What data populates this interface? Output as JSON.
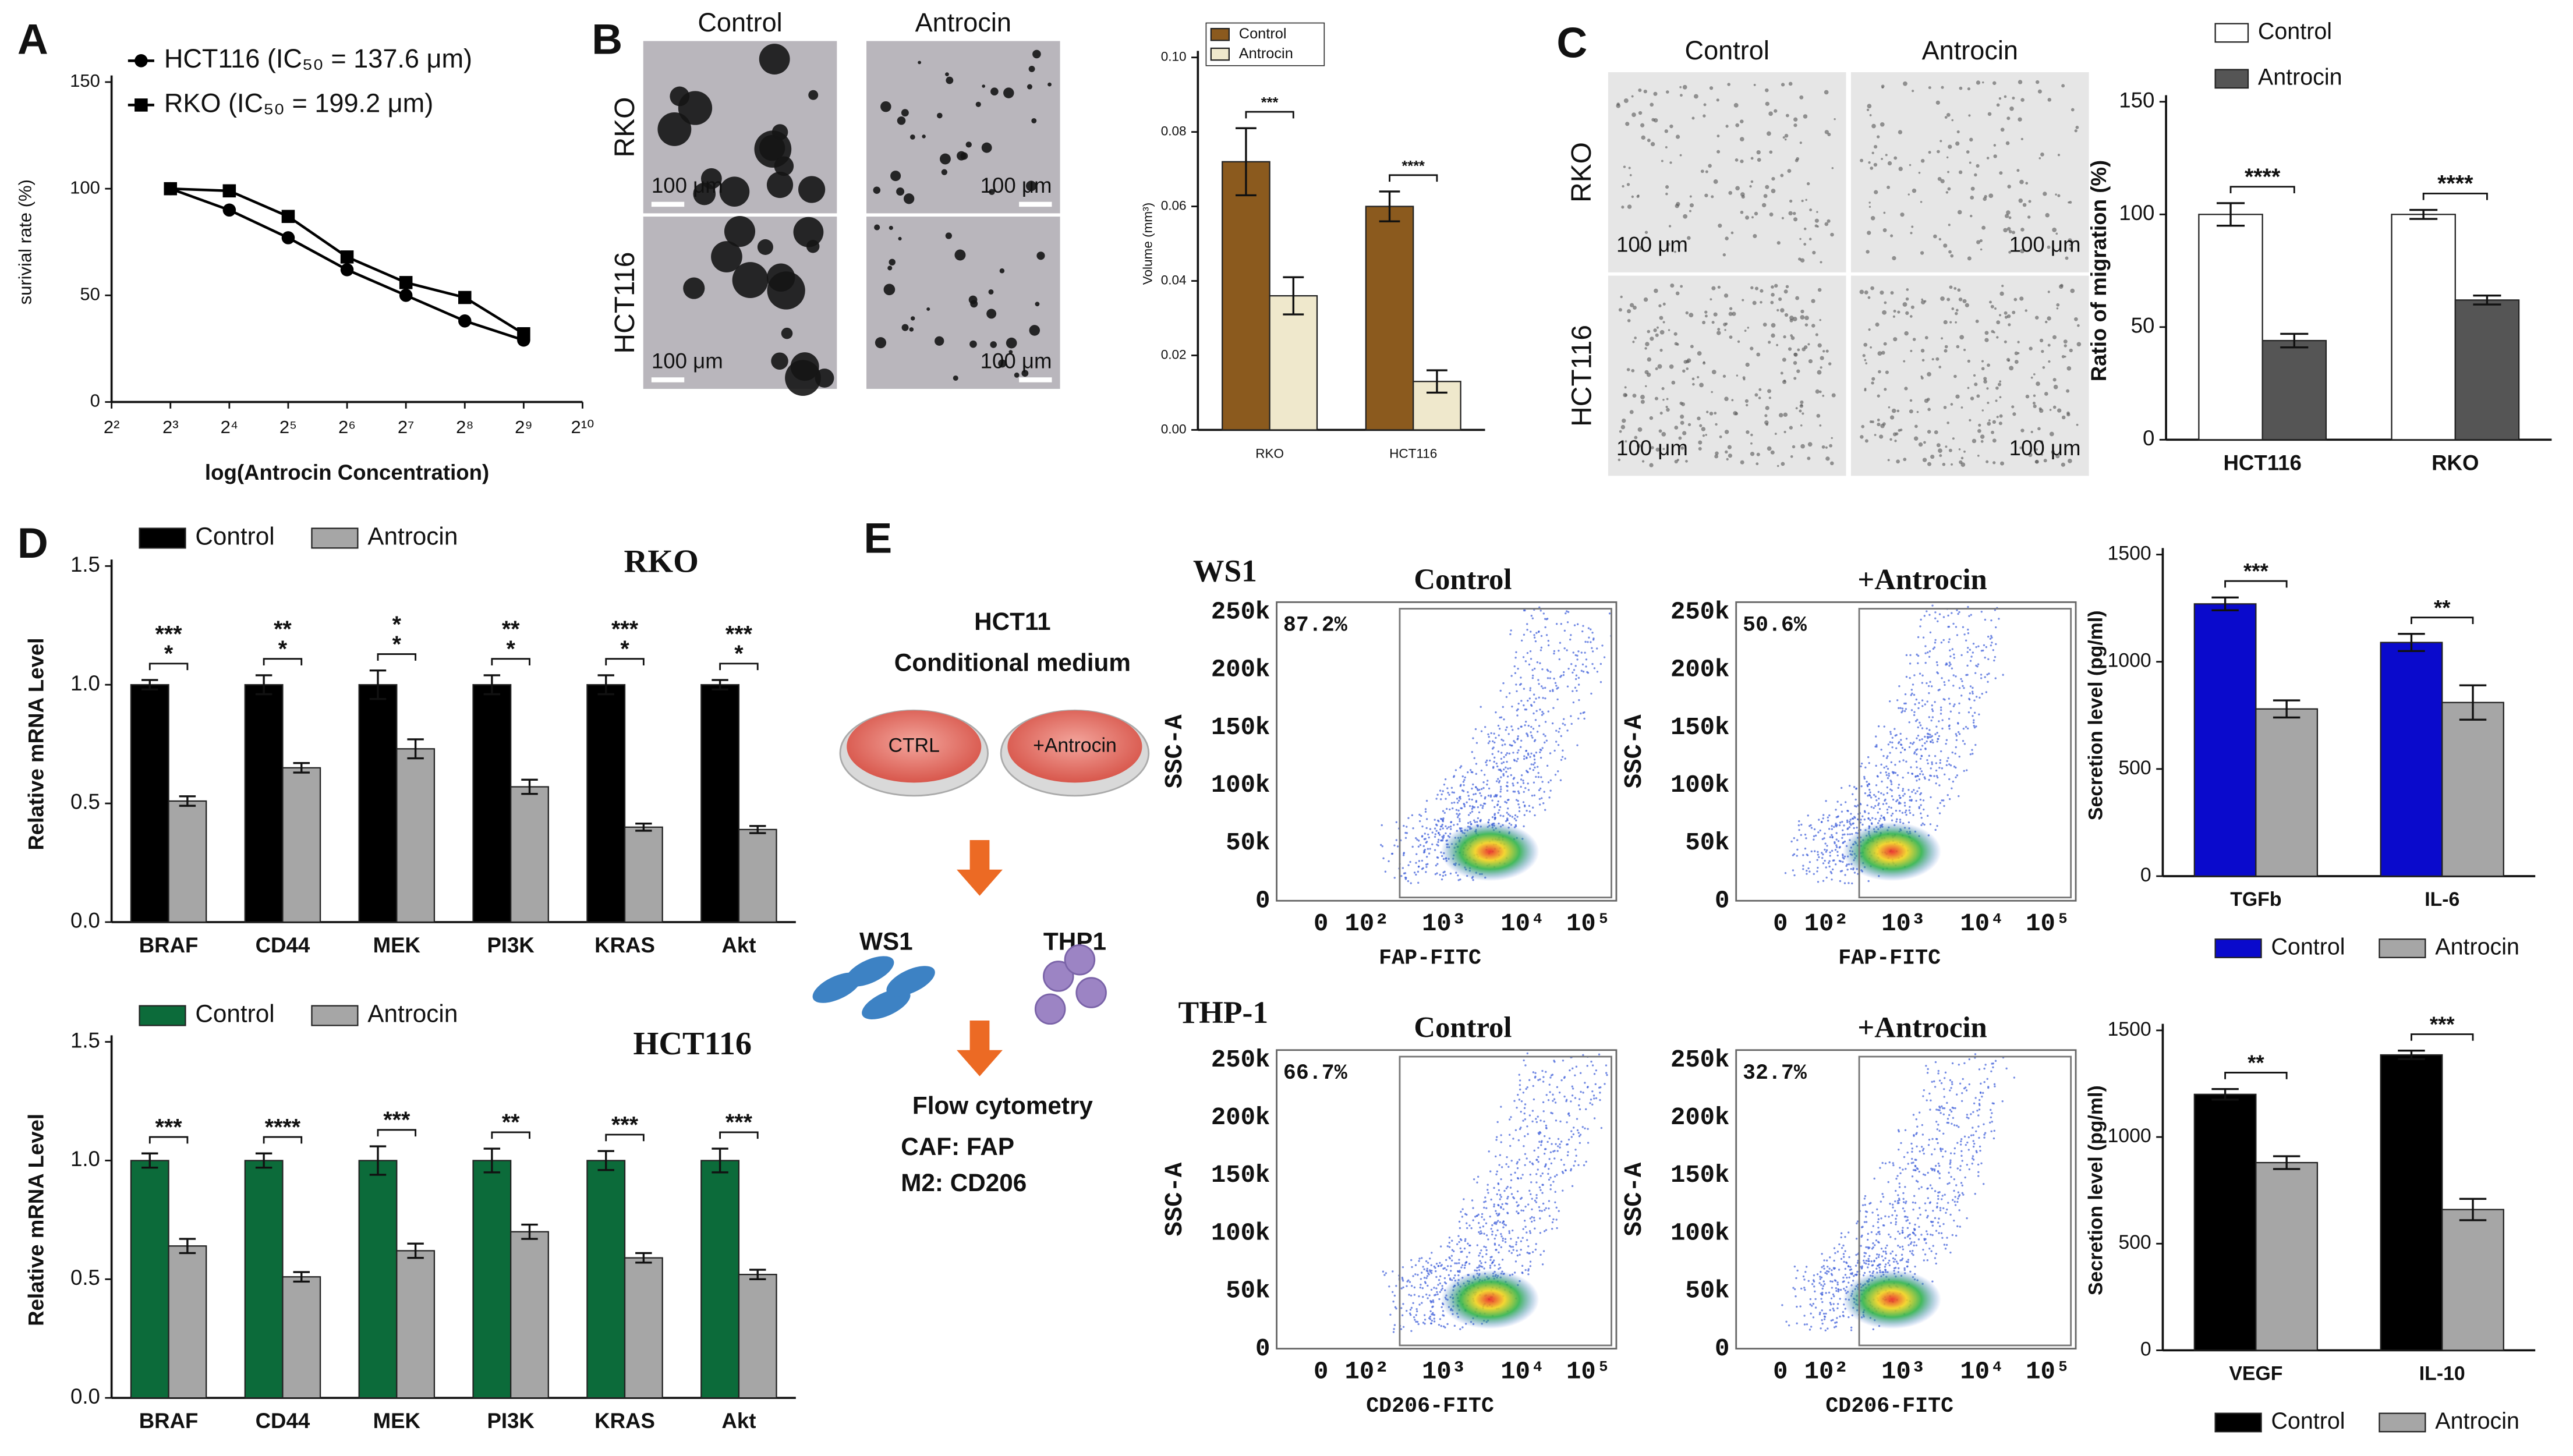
{
  "panel_labels": [
    "A",
    "B",
    "C",
    "D",
    "E"
  ],
  "chart_data": [
    {
      "type": "line",
      "xlabel": "log(Antrocin Concentration)",
      "ylabel": "surivial rate (%)",
      "x": [
        8,
        16,
        32,
        64,
        128,
        256,
        512
      ],
      "xlim": [
        4,
        1024
      ],
      "xscale": "log2",
      "xticks": [
        {
          "value": 4,
          "label": "2²"
        },
        {
          "value": 8,
          "label": "2³"
        },
        {
          "value": 16,
          "label": "2⁴"
        },
        {
          "value": 32,
          "label": "2⁵"
        },
        {
          "value": 64,
          "label": "2⁶"
        },
        {
          "value": 128,
          "label": "2⁷"
        },
        {
          "value": 256,
          "label": "2⁸"
        },
        {
          "value": 512,
          "label": "2⁹"
        },
        {
          "value": 1024,
          "label": "2¹⁰"
        }
      ],
      "ylim": [
        0,
        150
      ],
      "yticks": [
        0,
        50,
        100,
        150
      ],
      "series": [
        {
          "name": "HCT116 (IC₅₀ = 137.6 μm)",
          "color": "#000000",
          "marker": "circle",
          "values": [
            100,
            90,
            77,
            62,
            50,
            38,
            29
          ]
        },
        {
          "name": "RKO (IC₅₀ = 199.2 μm)",
          "color": "#000000",
          "marker": "square",
          "values": [
            100,
            99,
            87,
            68,
            56,
            49,
            32
          ]
        }
      ]
    },
    {
      "type": "bar",
      "ylabel": "Volume (mm³)",
      "categories": [
        "RKO",
        "HCT116"
      ],
      "ylim": [
        0,
        0.1
      ],
      "yticks": [
        {
          "value": 0,
          "label": "0.00"
        },
        0.02,
        0.04,
        0.06,
        0.08,
        {
          "value": 0.1,
          "label": "0.10"
        }
      ],
      "series": [
        {
          "name": "Control",
          "color": "#8b5a1e",
          "values": [
            0.072,
            0.06
          ],
          "errors": [
            0.009,
            0.004
          ]
        },
        {
          "name": "Antrocin",
          "color": "#efe8cc",
          "values": [
            0.036,
            0.013
          ],
          "errors": [
            0.005,
            0.003
          ]
        }
      ],
      "annotations": [
        "***",
        "****"
      ]
    },
    {
      "type": "bar",
      "ylabel": "Ratio of migration (%)",
      "categories": [
        "HCT116",
        "RKO"
      ],
      "ylim": [
        0,
        150
      ],
      "yticks": [
        0,
        50,
        100,
        150
      ],
      "series": [
        {
          "name": "Control",
          "color": "#ffffff",
          "values": [
            100,
            100
          ],
          "errors": [
            5,
            2
          ]
        },
        {
          "name": "Antrocin",
          "color": "#555555",
          "values": [
            44,
            62
          ],
          "errors": [
            3,
            2
          ]
        }
      ],
      "annotations": [
        "****",
        "****"
      ]
    },
    {
      "type": "bar",
      "title": "RKO",
      "title_color": "#111111",
      "ylabel": "Relative mRNA Level",
      "categories": [
        "BRAF",
        "CD44",
        "MEK",
        "PI3K",
        "KRAS",
        "Akt"
      ],
      "ylim": [
        0,
        1.5
      ],
      "yticks": [
        {
          "value": 0,
          "label": "0.0"
        },
        0.5,
        {
          "value": 1,
          "label": "1.0"
        },
        1.5
      ],
      "series": [
        {
          "name": "Control",
          "color": "#000000",
          "values": [
            1,
            1,
            1,
            1,
            1,
            1
          ],
          "errors": [
            0.02,
            0.04,
            0.06,
            0.04,
            0.04,
            0.02
          ]
        },
        {
          "name": "Antrocin",
          "color": "#a6a6a6",
          "values": [
            0.51,
            0.65,
            0.73,
            0.57,
            0.4,
            0.39
          ],
          "errors": [
            0.02,
            0.02,
            0.04,
            0.03,
            0.015,
            0.015
          ]
        }
      ],
      "annotations": [
        [
          "***",
          "*"
        ],
        [
          "**",
          "*"
        ],
        [
          "*",
          "*"
        ],
        [
          "**",
          "*"
        ],
        [
          "***",
          "*"
        ],
        [
          "***",
          "*"
        ]
      ]
    },
    {
      "type": "bar",
      "title": "HCT116",
      "title_color": "#2e8b2e",
      "ylabel": "Relative mRNA Level",
      "categories": [
        "BRAF",
        "CD44",
        "MEK",
        "PI3K",
        "KRAS",
        "Akt"
      ],
      "ylim": [
        0,
        1.5
      ],
      "yticks": [
        {
          "value": 0,
          "label": "0.0"
        },
        0.5,
        {
          "value": 1,
          "label": "1.0"
        },
        1.5
      ],
      "series": [
        {
          "name": "Control",
          "color": "#0c6b3a",
          "values": [
            1,
            1,
            1,
            1,
            1,
            1
          ],
          "errors": [
            0.03,
            0.03,
            0.06,
            0.05,
            0.04,
            0.05
          ]
        },
        {
          "name": "Antrocin",
          "color": "#a6a6a6",
          "values": [
            0.64,
            0.51,
            0.62,
            0.7,
            0.59,
            0.52
          ],
          "errors": [
            0.03,
            0.02,
            0.03,
            0.03,
            0.02,
            0.02
          ]
        }
      ],
      "annotations": [
        "***",
        "****",
        "***",
        "**",
        "***",
        "***"
      ]
    },
    {
      "type": "bar",
      "ylabel": "Secretion level (pg/ml)",
      "categories": [
        "TGFb",
        "IL-6"
      ],
      "ylim": [
        0,
        1500
      ],
      "yticks": [
        0,
        500,
        1000,
        1500
      ],
      "series": [
        {
          "name": "Control",
          "color": "#0a0acc",
          "values": [
            1270,
            1090
          ],
          "errors": [
            30,
            40
          ]
        },
        {
          "name": "Antrocin",
          "color": "#a6a6a6",
          "values": [
            780,
            810
          ],
          "errors": [
            40,
            80
          ]
        }
      ],
      "annotations": [
        "***",
        "**"
      ]
    },
    {
      "type": "bar",
      "ylabel": "Secretion level (pg/ml)",
      "categories": [
        "VEGF",
        "IL-10"
      ],
      "ylim": [
        0,
        1500
      ],
      "yticks": [
        0,
        500,
        1000,
        1500
      ],
      "series": [
        {
          "name": "Control",
          "color": "#000000",
          "values": [
            1200,
            1385
          ],
          "errors": [
            25,
            20
          ]
        },
        {
          "name": "Antrocin",
          "color": "#a6a6a6",
          "values": [
            880,
            660
          ],
          "errors": [
            30,
            50
          ]
        }
      ],
      "annotations": [
        "**",
        "***"
      ]
    }
  ],
  "micrographs": [
    {
      "columns": [
        "Control",
        "Antrocin"
      ],
      "rows": [
        "RKO",
        "HCT116"
      ],
      "scale_bars": [
        "100 μm",
        "100 μm",
        "100 μm",
        "100 μm"
      ]
    },
    {
      "columns": [
        "Control",
        "Antrocin"
      ],
      "rows": [
        "RKO",
        "HCT116"
      ],
      "scale_bars": [
        "100 μm",
        "100 μm",
        "100 μm",
        "100 μm"
      ]
    }
  ],
  "diagram": {
    "title": "HCT11",
    "subtitle": "Conditional medium",
    "dishes": [
      "CTRL",
      "+Antrocin"
    ],
    "cells": [
      "WS1",
      "THP1"
    ],
    "readout": "Flow cytometry",
    "markers": [
      "CAF: FAP",
      "M2: CD206"
    ]
  },
  "flow_cytometry": {
    "y_label": "SSC-A",
    "y_ticks": [
      "0",
      "50k",
      "100k",
      "150k",
      "200k",
      "250k"
    ],
    "x_ticks": [
      "0",
      "10²",
      "10³",
      "10⁴",
      "10⁵"
    ],
    "rows": [
      {
        "name": "WS1",
        "x_label": "FAP-FITC",
        "plots": [
          {
            "title": "Control",
            "gate": "87.2%"
          },
          {
            "title": "+Antrocin",
            "gate": "50.6%"
          }
        ]
      },
      {
        "name": "THP-1",
        "x_label": "CD206-FITC",
        "plots": [
          {
            "title": "Control",
            "gate": "66.7%"
          },
          {
            "title": "+Antrocin",
            "gate": "32.7%"
          }
        ]
      }
    ]
  }
}
